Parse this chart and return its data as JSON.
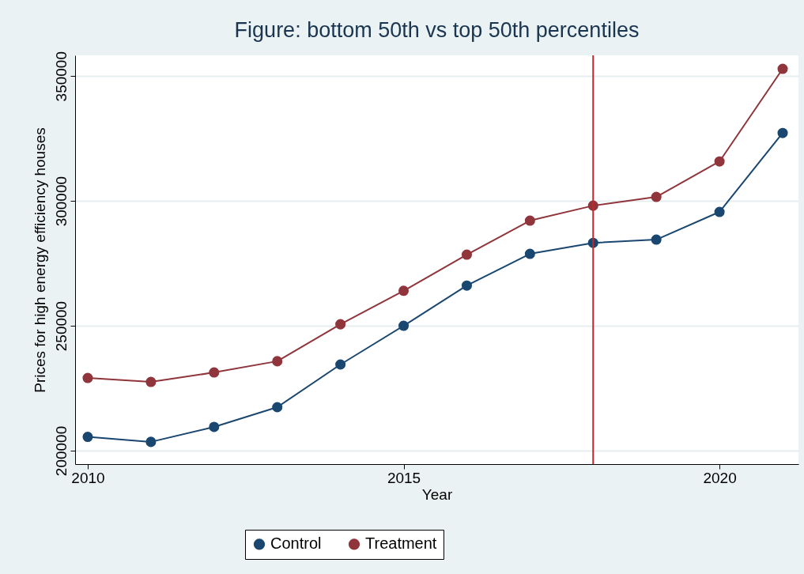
{
  "chart_data": {
    "type": "line",
    "title": "Figure: bottom 50th vs top 50th percentiles",
    "xlabel": "Year",
    "ylabel": "Prices for high energy efficiency houses",
    "x": [
      2010,
      2011,
      2012,
      2013,
      2014,
      2015,
      2016,
      2017,
      2018,
      2019,
      2020,
      2021
    ],
    "series": [
      {
        "name": "Control",
        "color": "#1a476f",
        "values": [
          205500,
          203500,
          209500,
          217400,
          234500,
          250000,
          266100,
          278800,
          283200,
          284500,
          295600,
          327200
        ]
      },
      {
        "name": "Treatment",
        "color": "#90353b",
        "values": [
          229100,
          227500,
          231300,
          235800,
          250600,
          264000,
          278500,
          292100,
          298100,
          301600,
          315800,
          352900
        ]
      }
    ],
    "xlim": [
      2009.8,
      2021.25
    ],
    "xticks": [
      2010,
      2015,
      2020
    ],
    "ylim": [
      194600,
      358300
    ],
    "yticks": [
      200000,
      250000,
      300000,
      350000
    ],
    "ref_lines": [
      {
        "axis": "x",
        "value": 2018,
        "color": "#c1272d"
      }
    ],
    "grid": "y",
    "legend": "bottom",
    "marker": "circle",
    "line_style": "solid"
  }
}
